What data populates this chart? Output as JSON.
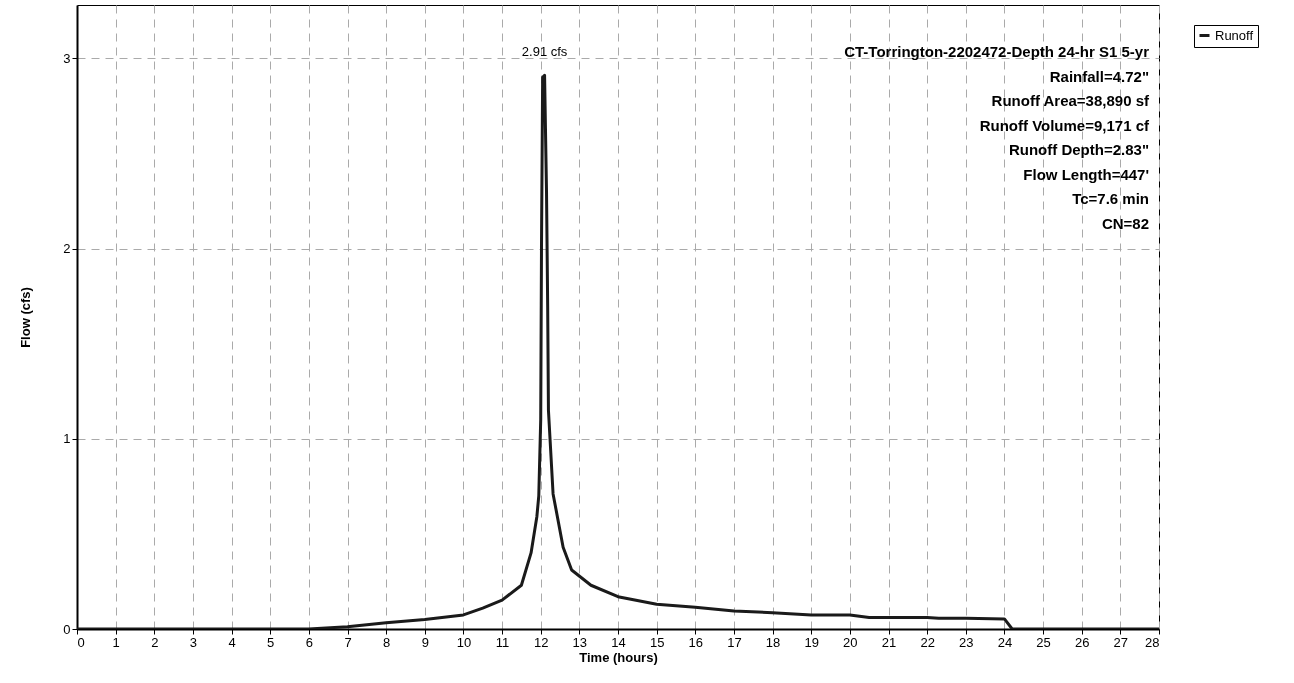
{
  "chart_data": {
    "type": "line",
    "xlabel": "Time  (hours)",
    "ylabel": "Flow  (cfs)",
    "xlim": [
      0,
      28
    ],
    "xticks": [
      0,
      1,
      2,
      3,
      4,
      5,
      6,
      7,
      8,
      9,
      10,
      11,
      12,
      13,
      14,
      15,
      16,
      17,
      18,
      19,
      20,
      21,
      22,
      23,
      24,
      25,
      26,
      27,
      28
    ],
    "ylim": [
      0,
      3.28
    ],
    "yticks": [
      0,
      1,
      2,
      3
    ],
    "grid": true,
    "legend": "top right",
    "marker": "none",
    "line_style": "solid",
    "series": [
      {
        "name": "Runoff",
        "color": "#1a1a1a",
        "x": [
          0,
          6,
          7,
          8,
          9,
          10,
          10.5,
          11,
          11.5,
          11.75,
          11.9,
          11.95,
          12.0,
          12.02,
          12.05,
          12.1,
          12.15,
          12.18,
          12.2,
          12.32,
          12.58,
          12.8,
          13.3,
          14,
          15,
          16,
          17,
          18,
          19,
          20,
          20.5,
          21,
          22,
          22.3,
          23,
          24,
          24.2,
          28
        ],
        "values": [
          0,
          0,
          0.012,
          0.033,
          0.05,
          0.074,
          0.11,
          0.152,
          0.23,
          0.4,
          0.59,
          0.7,
          1.1,
          2.0,
          2.9,
          2.91,
          2.3,
          1.7,
          1.15,
          0.71,
          0.43,
          0.31,
          0.23,
          0.17,
          0.13,
          0.114,
          0.095,
          0.086,
          0.074,
          0.074,
          0.061,
          0.061,
          0.061,
          0.056,
          0.056,
          0.053,
          0,
          0
        ]
      }
    ],
    "annotations": [
      {
        "text": "2.91 cfs",
        "x": 12.1,
        "y": 2.91
      },
      "CT-Torrington-2202472-Depth 24-hr S1 5-yr",
      "Rainfall=4.72\"",
      "Runoff Area=38,890 sf",
      "Runoff Volume=9,171 cf",
      "Runoff Depth=2.83\"",
      "Flow Length=447'",
      "Tc=7.6 min",
      "CN=82"
    ]
  }
}
